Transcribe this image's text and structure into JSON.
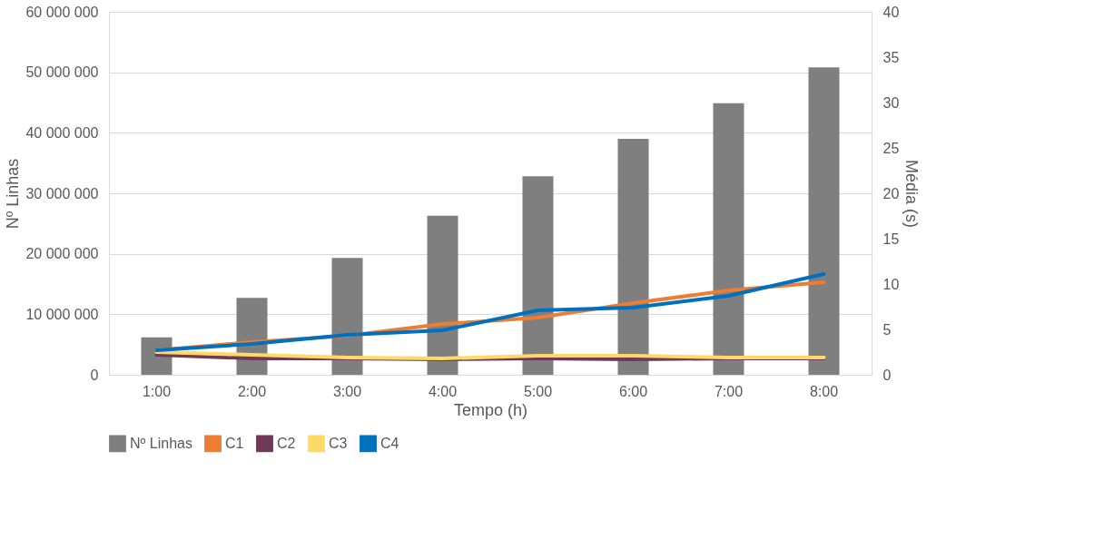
{
  "chart_data": {
    "type": "bar",
    "xlabel": "Tempo (h)",
    "ylabel": "Nº Linhas",
    "y2label": "Média (s)",
    "categories": [
      "1:00",
      "2:00",
      "3:00",
      "4:00",
      "5:00",
      "6:00",
      "7:00",
      "8:00"
    ],
    "series": [
      {
        "name": "Nº Linhas",
        "color": "#7f7f7f",
        "values": [
          6200000,
          12700000,
          19300000,
          26300000,
          32800000,
          39000000,
          44900000,
          50800000
        ]
      },
      {
        "name": "C1",
        "type": "line",
        "axis": "y2",
        "color": "#ed7d31",
        "values": [
          2.7,
          3.6,
          4.3,
          5.6,
          6.3,
          7.9,
          9.3,
          10.2
        ]
      },
      {
        "name": "C2",
        "type": "line",
        "axis": "y2",
        "color": "#70395a",
        "values": [
          2.2,
          1.8,
          1.8,
          1.7,
          1.8,
          1.7,
          1.8,
          1.8
        ]
      },
      {
        "name": "C3",
        "type": "line",
        "axis": "y2",
        "color": "#ffd966",
        "values": [
          2.5,
          2.2,
          1.9,
          1.8,
          2.1,
          2.1,
          1.9,
          1.9
        ]
      },
      {
        "name": "C4",
        "type": "line",
        "axis": "y2",
        "color": "#0070c0",
        "values": [
          2.7,
          3.4,
          4.4,
          4.9,
          7.1,
          7.4,
          8.7,
          11.1
        ]
      }
    ],
    "ylim": [
      0,
      60000000
    ],
    "yticks": [
      {
        "value": 0,
        "label": "0"
      },
      {
        "value": 10000000,
        "label": "10 000 000"
      },
      {
        "value": 20000000,
        "label": "20 000 000"
      },
      {
        "value": 30000000,
        "label": "30 000 000"
      },
      {
        "value": 40000000,
        "label": "40 000 000"
      },
      {
        "value": 50000000,
        "label": "50 000 000"
      },
      {
        "value": 60000000,
        "label": "60 000 000"
      }
    ],
    "y2lim": [
      0,
      40
    ],
    "y2ticks": [
      0,
      5,
      10,
      15,
      20,
      25,
      30,
      35,
      40
    ],
    "grid": "y",
    "legend": "bottom",
    "marker": "none",
    "line_style": "solid"
  }
}
